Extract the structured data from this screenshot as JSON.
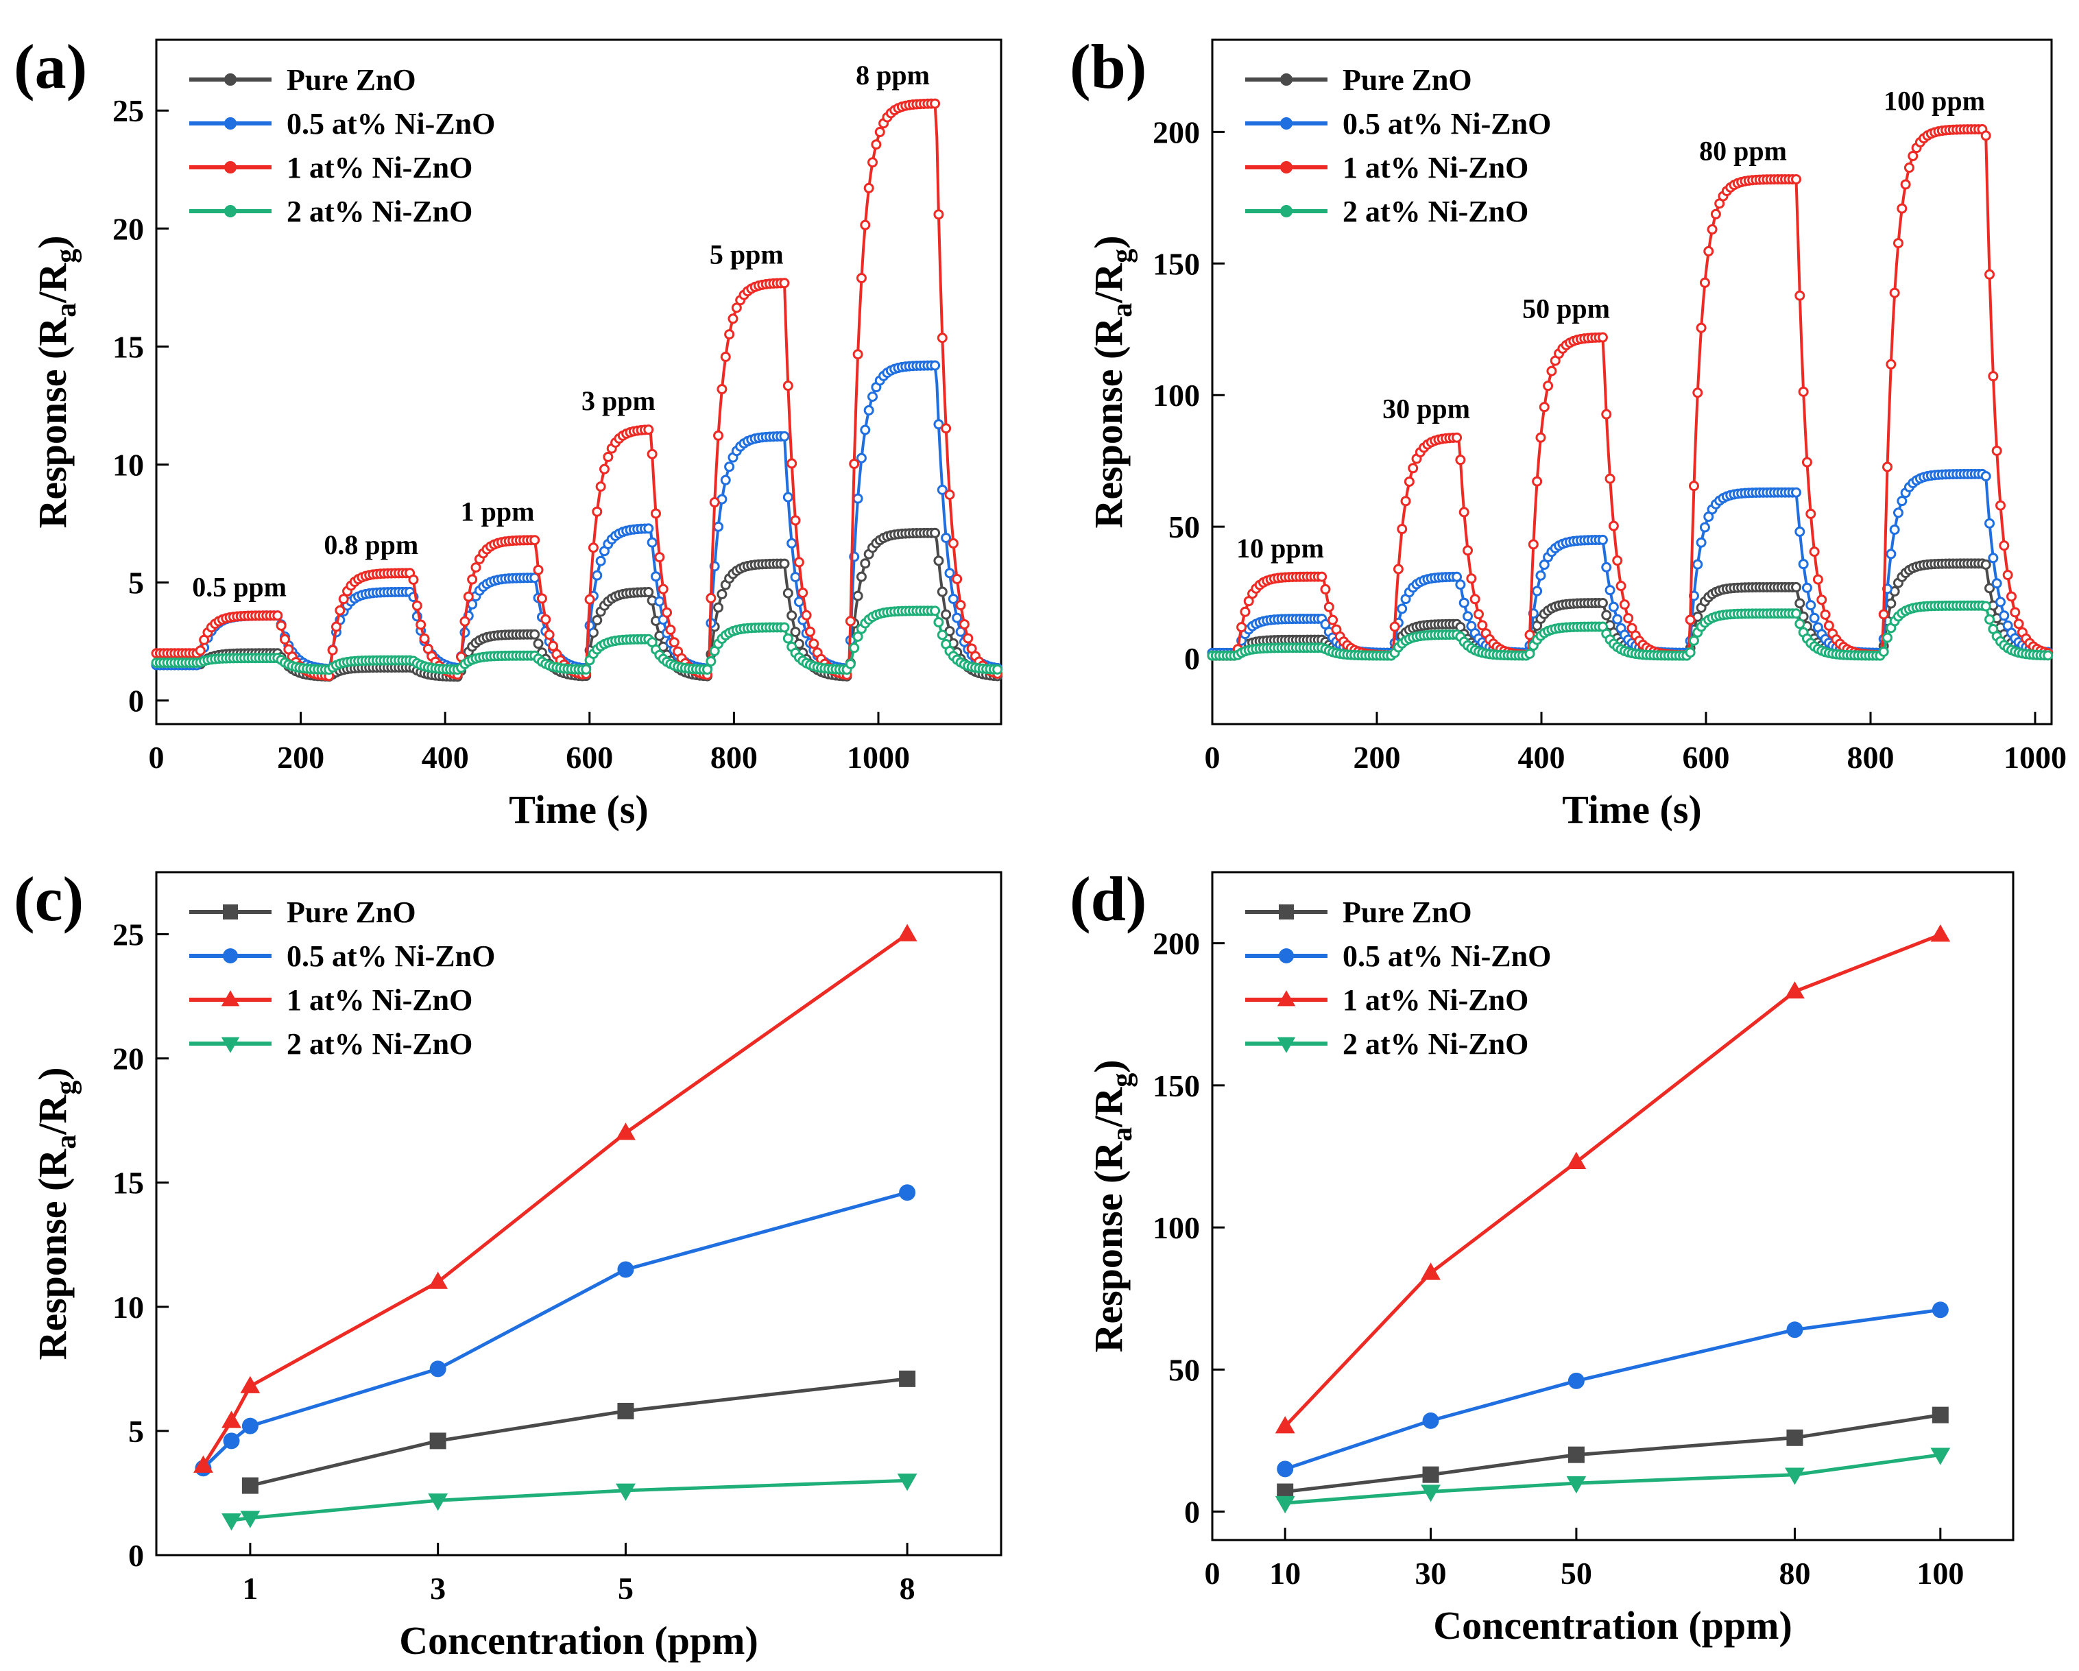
{
  "colors": {
    "Pure ZnO": "#4a4a4a",
    "0.5 at% Ni-ZnO": "#1f6fe0",
    "1 at% Ni-ZnO": "#ee2a24",
    "2 at% Ni-ZnO": "#1fb07a"
  },
  "chart_data": [
    {
      "id": "a",
      "panel_label": "(a)",
      "type": "line",
      "xlabel": "Time (s)",
      "ylabel": "Response (Ra/Rg)",
      "xlim": [
        0,
        1170
      ],
      "ylim": [
        -1,
        28
      ],
      "xticks": [
        0,
        200,
        400,
        600,
        800,
        1000
      ],
      "yticks": [
        0,
        5,
        10,
        15,
        20,
        25
      ],
      "legend": [
        "Pure ZnO",
        "0.5 at% Ni-ZnO",
        "1 at% Ni-ZnO",
        "2 at% Ni-ZnO"
      ],
      "legend_position": "top-left",
      "pulses": [
        {
          "label": "0.5 ppm",
          "on": 60,
          "off": 170,
          "values": [
            2.0,
            3.6,
            3.6,
            1.8
          ]
        },
        {
          "label": "0.8 ppm",
          "on": 240,
          "off": 355,
          "values": [
            1.4,
            4.6,
            5.4,
            1.7
          ]
        },
        {
          "label": "1 ppm",
          "on": 420,
          "off": 525,
          "values": [
            2.8,
            5.2,
            6.8,
            1.9
          ]
        },
        {
          "label": "3 ppm",
          "on": 595,
          "off": 685,
          "values": [
            4.6,
            7.3,
            11.5,
            2.6
          ]
        },
        {
          "label": "5 ppm",
          "on": 765,
          "off": 870,
          "values": [
            5.8,
            11.2,
            17.7,
            3.1
          ]
        },
        {
          "label": "8 ppm",
          "on": 960,
          "off": 1080,
          "values": [
            7.1,
            14.2,
            25.3,
            3.8
          ]
        }
      ],
      "baselines": [
        1.0,
        1.3,
        1.0,
        1.3
      ],
      "initial_baselines": [
        1.5,
        1.5,
        2.0,
        1.6
      ]
    },
    {
      "id": "b",
      "panel_label": "(b)",
      "type": "line",
      "xlabel": "Time (s)",
      "ylabel": "Response (Ra/Rg)",
      "xlim": [
        0,
        1020
      ],
      "ylim": [
        -25,
        235
      ],
      "xticks": [
        0,
        200,
        400,
        600,
        800,
        1000
      ],
      "yticks": [
        0,
        50,
        100,
        150,
        200
      ],
      "legend": [
        "Pure ZnO",
        "0.5 at% Ni-ZnO",
        "1 at% Ni-ZnO",
        "2 at% Ni-ZnO"
      ],
      "legend_position": "top-left",
      "pulses": [
        {
          "label": "10 ppm",
          "on": 30,
          "off": 135,
          "values": [
            7,
            15,
            31,
            4
          ]
        },
        {
          "label": "30 ppm",
          "on": 220,
          "off": 300,
          "values": [
            13,
            31,
            84,
            9
          ]
        },
        {
          "label": "50 ppm",
          "on": 385,
          "off": 475,
          "values": [
            21,
            45,
            122,
            12
          ]
        },
        {
          "label": "80 ppm",
          "on": 580,
          "off": 710,
          "values": [
            27,
            63,
            182,
            17
          ]
        },
        {
          "label": "100 ppm",
          "on": 815,
          "off": 940,
          "values": [
            36,
            70,
            201,
            20
          ]
        }
      ],
      "baselines": [
        2,
        2,
        1,
        1
      ],
      "initial_baselines": [
        2,
        2,
        1,
        1
      ]
    },
    {
      "id": "c",
      "panel_label": "(c)",
      "type": "line",
      "xlabel": "Concentration (ppm)",
      "ylabel": "Response (Ra/Rg)",
      "xlim": [
        0,
        9
      ],
      "ylim": [
        0,
        27.5
      ],
      "xticks": [
        1,
        3,
        5,
        8
      ],
      "yticks": [
        0,
        5,
        10,
        15,
        20,
        25
      ],
      "legend_position": "top-left",
      "series": [
        {
          "name": "Pure ZnO",
          "marker": "square",
          "x": [
            1,
            3,
            5,
            8
          ],
          "y": [
            2.8,
            4.6,
            5.8,
            7.1
          ]
        },
        {
          "name": "0.5 at% Ni-ZnO",
          "marker": "circle",
          "x": [
            0.5,
            0.8,
            1,
            3,
            5,
            8
          ],
          "y": [
            3.5,
            4.6,
            5.2,
            7.5,
            11.5,
            14.6
          ]
        },
        {
          "name": "1 at% Ni-ZnO",
          "marker": "triangle-up",
          "x": [
            0.5,
            0.8,
            1,
            3,
            5,
            8
          ],
          "y": [
            3.6,
            5.4,
            6.8,
            11.0,
            17.0,
            25.0
          ]
        },
        {
          "name": "2 at% Ni-ZnO",
          "marker": "triangle-down",
          "x": [
            0.8,
            1,
            3,
            5,
            8
          ],
          "y": [
            1.4,
            1.5,
            2.2,
            2.6,
            3.0
          ]
        }
      ]
    },
    {
      "id": "d",
      "panel_label": "(d)",
      "type": "line",
      "xlabel": "Concentration (ppm)",
      "ylabel": "Response (Ra/Rg)",
      "xlim": [
        0,
        110
      ],
      "ylim": [
        -10,
        225
      ],
      "xticks": [
        0,
        10,
        30,
        50,
        80,
        100
      ],
      "yticks": [
        0,
        50,
        100,
        150,
        200
      ],
      "legend_position": "top-left",
      "series": [
        {
          "name": "Pure ZnO",
          "marker": "square",
          "x": [
            10,
            30,
            50,
            80,
            100
          ],
          "y": [
            7,
            13,
            20,
            26,
            34
          ]
        },
        {
          "name": "0.5 at% Ni-ZnO",
          "marker": "circle",
          "x": [
            10,
            30,
            50,
            80,
            100
          ],
          "y": [
            15,
            32,
            46,
            64,
            71
          ]
        },
        {
          "name": "1 at% Ni-ZnO",
          "marker": "triangle-up",
          "x": [
            10,
            30,
            50,
            80,
            100
          ],
          "y": [
            30,
            84,
            123,
            183,
            203
          ]
        },
        {
          "name": "2 at% Ni-ZnO",
          "marker": "triangle-down",
          "x": [
            10,
            30,
            50,
            80,
            100
          ],
          "y": [
            3,
            7,
            10,
            13,
            20
          ]
        }
      ]
    }
  ]
}
